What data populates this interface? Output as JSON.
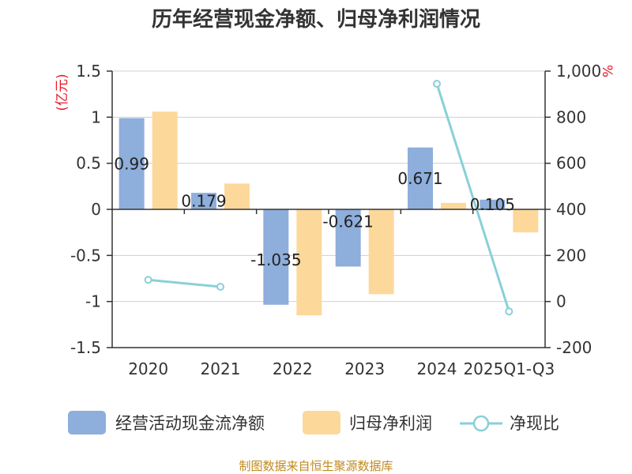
{
  "chart_data": {
    "type": "bar",
    "title": "历年经营现金净额、归母净利润情况",
    "categories": [
      "2020",
      "2021",
      "2022",
      "2023",
      "2024",
      "2025Q1-Q3"
    ],
    "y_left": {
      "unit_label": "(亿元)",
      "ylim": [
        -1.5,
        1.5
      ],
      "ticks": [
        1.5,
        1,
        0.5,
        0,
        -0.5,
        -1,
        -1.5
      ],
      "tick_labels": [
        "1.5",
        "1",
        "0.5",
        "0",
        "-0.5",
        "-1",
        "-1.5"
      ]
    },
    "y_right": {
      "unit_label": "%",
      "ylim": [
        -200,
        1000
      ],
      "ticks": [
        1000,
        800,
        600,
        400,
        200,
        0,
        -200
      ],
      "tick_labels": [
        "1,000",
        "800",
        "600",
        "400",
        "200",
        "0",
        "-200"
      ]
    },
    "series": [
      {
        "name": "经营活动现金流净额",
        "type": "bar",
        "axis": "left",
        "color": "#8eaedb",
        "values": [
          0.99,
          0.179,
          -1.035,
          -0.621,
          0.671,
          0.105
        ],
        "labels": [
          "0.99",
          "0.179",
          "-1.035",
          "-0.621",
          "0.671",
          "0.105"
        ]
      },
      {
        "name": "归母净利润",
        "type": "bar",
        "axis": "left",
        "color": "#fdd89b",
        "values": [
          1.06,
          0.28,
          -1.15,
          -0.92,
          0.07,
          -0.25
        ]
      },
      {
        "name": "净现比",
        "type": "line",
        "axis": "right",
        "color": "#89d0d8",
        "values": [
          94,
          64,
          null,
          null,
          945,
          -43
        ]
      }
    ],
    "grid": true,
    "legend_position": "bottom"
  },
  "footer": {
    "source": "制图数据来自恒生聚源数据库"
  }
}
